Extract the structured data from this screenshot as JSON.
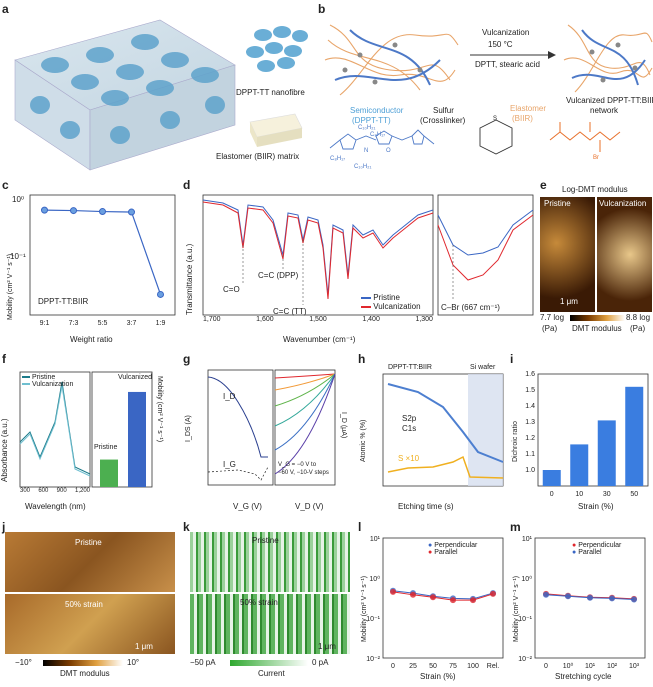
{
  "panel_labels": {
    "a": "a",
    "b": "b",
    "c": "c",
    "d": "d",
    "e": "e",
    "f": "f",
    "g": "g",
    "h": "h",
    "i": "i",
    "j": "j",
    "k": "k",
    "l": "l",
    "m": "m"
  },
  "a": {
    "nanofibre_label": "DPPT-TT nanofibre",
    "matrix_label": "Elastomer (BIIR) matrix"
  },
  "b": {
    "reaction_title": "Vulcanization",
    "reaction_temp": "150 °C",
    "reaction_agents": "DPTT, stearic acid",
    "semiconductor": "Semiconductor",
    "semiconductor_name": "(DPPT-TT)",
    "sulfur": "Sulfur",
    "crosslinker": "(Crosslinker)",
    "elastomer": "Elastomer",
    "elastomer_name": "(BIIR)",
    "product_line1": "Vulcanized DPPT-TT:BIIR",
    "product_line2": "network",
    "chem_c10": "C₁₀H₂₁",
    "chem_c8": "C₈H₁₇",
    "chem_c8b": "C₈H₁₇",
    "chem_c10b": "C₁₀H₂₁",
    "chem_o": "O",
    "chem_n": "N",
    "chem_br": "Br",
    "chem_s": "S"
  },
  "c": {
    "ylabel": "Mobility (cm² V⁻¹ s⁻¹)",
    "xlabel": "Weight ratio",
    "sample": "DPPT-TT:BIIR",
    "yticks": [
      "10⁰",
      "10⁻¹"
    ]
  },
  "d": {
    "ylabel": "Transmittance (a.u.)",
    "xlabel": "Wavenumber (cm⁻¹)",
    "xticks": [
      "1,700",
      "1,600",
      "1,500",
      "1,400",
      "1,300"
    ],
    "ann1": "C=O",
    "ann2": "C=C (DPP)",
    "ann3": "C=C (TT)",
    "ann4": "C–Br (667 cm⁻¹)",
    "legend": [
      {
        "name": "Pristine",
        "color": "#3a66c4"
      },
      {
        "name": "Vulcanization",
        "color": "#e0282e"
      }
    ]
  },
  "e": {
    "title": "Log-DMT modulus",
    "left": "Pristine",
    "right": "Vulcanization",
    "scalebar": "1 μm",
    "cbar_min": "7.7 log",
    "cbar_max": "8.8 log",
    "cbar_min_unit": "(Pa)",
    "cbar_max_unit": "(Pa)",
    "cbar_label": "DMT modulus"
  },
  "f": {
    "ylabel": "Absorbance (a.u.)",
    "xlabel": "Wavelength (nm)",
    "xticks": [
      "300",
      "600",
      "900",
      "1,200"
    ],
    "legend": [
      {
        "name": "Pristine",
        "color": "#1d7b8a"
      },
      {
        "name": "Vulcanization",
        "color": "#6fbfd0"
      }
    ],
    "bar_pristine": "Pristine",
    "bar_vulc": "Vulcanized",
    "y2label": "Mobility (cm² V⁻¹ s⁻¹)",
    "y2ticks": [
      "10⁰",
      "10⁻¹",
      "10⁻²"
    ]
  },
  "g": {
    "ylabel": "I_DS (A)",
    "xlabel1": "V_G (V)",
    "xlabel2": "V_D (V)",
    "id": "I_D",
    "ig": "I_G",
    "xticks": [
      "−60",
      "−40",
      "−20",
      "0",
      "20"
    ],
    "xticks2": [
      "−60",
      "−40",
      "−20",
      "0"
    ],
    "yticks": [
      "10⁻⁵",
      "10⁻⁶",
      "10⁻⁷",
      "10⁻⁸",
      "10⁻⁹",
      "10⁻¹⁰",
      "10⁻¹¹"
    ],
    "y2ticks": [
      "0",
      "−0.5",
      "−1.0",
      "−1.5",
      "−2.0"
    ],
    "y2label": "I_D (μA)",
    "note1": "V_G = −0 V to",
    "note2": "−60 V, −10-V steps"
  },
  "h": {
    "ylabel": "Atomic % (%)",
    "xlabel": "Etching time (s)",
    "top_left": "DPPT-TT:BIIR",
    "top_right": "Si wafer",
    "xticks": [
      "0",
      "100",
      "200",
      "300",
      "400",
      "500"
    ],
    "yticks": [
      "0",
      "20",
      "40",
      "60",
      "80",
      "100"
    ],
    "s2p": "S2p",
    "c1s": "C1s",
    "sx10": "S ×10",
    "layer1": "DPPT-TT:BIIR",
    "layer2": "Si wafer"
  },
  "i": {
    "ylabel": "Dichroic ratio",
    "xlabel": "Strain (%)",
    "categories": [
      "0",
      "10",
      "30",
      "50"
    ],
    "values": [
      1.0,
      1.16,
      1.31,
      1.52
    ],
    "yticks": [
      "1.0",
      "1.1",
      "1.2",
      "1.3",
      "1.4",
      "1.5",
      "1.6"
    ]
  },
  "j": {
    "top": "Pristine",
    "bottom": "50% strain",
    "scalebar": "1 μm",
    "cbar_min": "−10°",
    "cbar_max": "10°",
    "cbar_label": "DMT modulus"
  },
  "k": {
    "top": "Pristine",
    "bottom": "50% strain",
    "scalebar": "1 μm",
    "cbar_min": "−50 pA",
    "cbar_max": "0 pA",
    "cbar_label": "Current"
  },
  "l": {
    "ylabel": "Mobility (cm² V⁻¹ s⁻¹)",
    "xlabel": "Strain (%)",
    "xticks": [
      "0",
      "25",
      "50",
      "75",
      "100",
      "Rel."
    ],
    "yticks": [
      "10¹",
      "10⁰",
      "10⁻¹",
      "10⁻²"
    ],
    "legend": [
      {
        "name": "Perpendicular",
        "color": "#3a66c4"
      },
      {
        "name": "Parallel",
        "color": "#e0282e"
      }
    ]
  },
  "m": {
    "ylabel": "Mobility (cm² V⁻¹ s⁻¹)",
    "xlabel": "Stretching cycle",
    "xticks": [
      "0",
      "10⁰",
      "10¹",
      "10²",
      "10³"
    ],
    "yticks": [
      "10¹",
      "10⁰",
      "10⁻¹",
      "10⁻²"
    ],
    "legend": [
      {
        "name": "Perpendicular",
        "color": "#e0282e"
      },
      {
        "name": "Parallel",
        "color": "#3a66c4"
      }
    ]
  },
  "chart_data": [
    {
      "type": "line",
      "panel": "c",
      "categories": [
        "9:1",
        "7:3",
        "5:5",
        "3:7",
        "1:9"
      ],
      "values": [
        0.56,
        0.55,
        0.53,
        0.52,
        0.022
      ],
      "ylim": [
        0.01,
        1
      ]
    },
    {
      "type": "bar",
      "panel": "f",
      "categories": [
        "Pristine",
        "Vulcanized"
      ],
      "values": [
        0.03,
        0.45
      ]
    },
    {
      "type": "bar",
      "panel": "i",
      "categories": [
        "0",
        "10",
        "30",
        "50"
      ],
      "values": [
        1.0,
        1.16,
        1.31,
        1.52
      ],
      "ylim": [
        0.9,
        1.6
      ]
    },
    {
      "type": "line",
      "panel": "l",
      "categories": [
        "0",
        "25",
        "50",
        "75",
        "100",
        "Rel."
      ],
      "series": [
        {
          "name": "Perpendicular",
          "values": [
            0.48,
            0.42,
            0.35,
            0.31,
            0.3,
            0.42
          ]
        },
        {
          "name": "Parallel",
          "values": [
            0.45,
            0.38,
            0.33,
            0.28,
            0.28,
            0.4
          ]
        }
      ],
      "ylim": [
        0.01,
        10
      ]
    },
    {
      "type": "line",
      "panel": "m",
      "categories": [
        "0",
        "10⁰",
        "10¹",
        "10²",
        "10³"
      ],
      "series": [
        {
          "name": "Perpendicular",
          "values": [
            0.4,
            0.36,
            0.33,
            0.32,
            0.3
          ]
        },
        {
          "name": "Parallel",
          "values": [
            0.38,
            0.35,
            0.32,
            0.31,
            0.29
          ]
        }
      ],
      "ylim": [
        0.01,
        10
      ]
    }
  ]
}
